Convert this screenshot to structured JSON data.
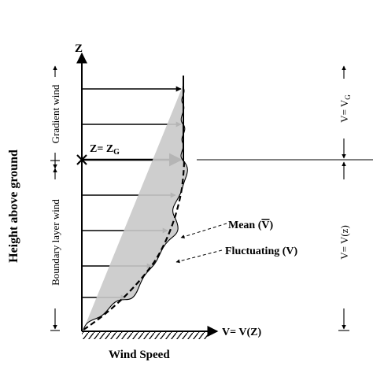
{
  "axes": {
    "z_label": "Z",
    "x_end_label": "V= V(Z)",
    "x_title": "Wind Speed",
    "y_title": "Height above ground"
  },
  "regions": {
    "gradient_label": "Gradient wind",
    "boundary_label": "Boundary layer wind"
  },
  "gradient_height": {
    "lhs": "Z= Z",
    "sub": "G"
  },
  "right_labels": {
    "upper_lhs": "V= V",
    "upper_sub": "G",
    "lower": "V= V(z)"
  },
  "callouts": {
    "mean_prefix": "Mean (",
    "mean_symbol": "V",
    "mean_suffix": ")",
    "fluctuating": "Fluctuating (V)"
  }
}
